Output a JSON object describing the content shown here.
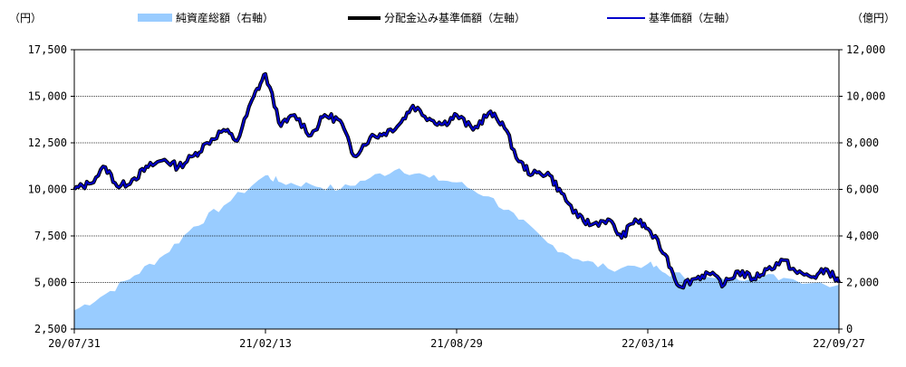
{
  "chart_data": {
    "type": "area+line",
    "y_left_unit": "（円）",
    "y_right_unit": "（億円）",
    "y_left_range": [
      2500,
      17500
    ],
    "y_left_ticks": [
      "2,500",
      "5,000",
      "7,500",
      "10,000",
      "12,500",
      "15,000",
      "17,500"
    ],
    "y_right_range": [
      0,
      12000
    ],
    "y_right_ticks": [
      "0",
      "2,000",
      "4,000",
      "6,000",
      "8,000",
      "10,000",
      "12,000"
    ],
    "x_ticks": [
      "20/07/31",
      "21/02/13",
      "21/08/29",
      "22/03/14",
      "22/09/27"
    ],
    "legend": {
      "net_assets": "純資産総額（右軸）",
      "adjusted_nav": "分配金込み基準価額（左軸）",
      "nav": "基準価額（左軸）"
    },
    "colors": {
      "net_assets": "#99ccff",
      "adjusted_nav": "#000000",
      "nav": "#0000cc"
    },
    "grid": true,
    "series": [
      {
        "name": "純資産総額（右軸）",
        "axis": "right",
        "x": [
          "2020-07-31",
          "2020-09-01",
          "2020-10-01",
          "2020-11-01",
          "2020-12-01",
          "2021-01-01",
          "2021-02-13",
          "2021-03-01",
          "2021-04-01",
          "2021-05-01",
          "2021-06-01",
          "2021-07-01",
          "2021-08-01",
          "2021-08-29",
          "2021-10-01",
          "2021-11-01",
          "2021-12-01",
          "2022-01-01",
          "2022-02-01",
          "2022-03-14",
          "2022-04-01",
          "2022-05-01",
          "2022-06-01",
          "2022-07-01",
          "2022-08-01",
          "2022-09-27"
        ],
        "values": [
          800,
          1500,
          2300,
          3200,
          4400,
          5300,
          6600,
          6300,
          6200,
          6000,
          6500,
          6900,
          6500,
          6300,
          5700,
          4700,
          3700,
          3000,
          2600,
          2800,
          2400,
          2200,
          2100,
          2300,
          2200,
          1900
        ]
      },
      {
        "name": "分配金込み基準価額（左軸）",
        "axis": "left",
        "x": [
          "2020-07-31",
          "2020-08-15",
          "2020-09-01",
          "2020-09-15",
          "2020-10-01",
          "2020-10-15",
          "2020-11-01",
          "2020-11-15",
          "2020-12-01",
          "2020-12-15",
          "2021-01-01",
          "2021-01-15",
          "2021-02-01",
          "2021-02-13",
          "2021-03-01",
          "2021-03-15",
          "2021-04-01",
          "2021-04-15",
          "2021-05-01",
          "2021-05-15",
          "2021-06-01",
          "2021-06-15",
          "2021-07-01",
          "2021-07-15",
          "2021-08-01",
          "2021-08-15",
          "2021-08-29",
          "2021-09-15",
          "2021-10-01",
          "2021-10-15",
          "2021-11-01",
          "2021-11-15",
          "2021-12-01",
          "2021-12-15",
          "2022-01-01",
          "2022-01-15",
          "2022-02-01",
          "2022-02-15",
          "2022-03-01",
          "2022-03-14",
          "2022-04-01",
          "2022-04-15",
          "2022-05-01",
          "2022-05-15",
          "2022-06-01",
          "2022-06-15",
          "2022-07-01",
          "2022-07-15",
          "2022-08-01",
          "2022-08-15",
          "2022-09-01",
          "2022-09-15",
          "2022-09-27"
        ],
        "values": [
          10000,
          10300,
          11200,
          10100,
          10600,
          11200,
          11600,
          11200,
          11800,
          12500,
          13200,
          12600,
          15000,
          16200,
          13400,
          14000,
          12900,
          14000,
          13700,
          11800,
          12800,
          13000,
          13500,
          14500,
          13800,
          13500,
          14000,
          13200,
          14100,
          13600,
          11500,
          10800,
          10900,
          9800,
          8500,
          8100,
          8400,
          7400,
          8400,
          7900,
          6500,
          4800,
          5200,
          5500,
          4900,
          5600,
          5200,
          5700,
          6200,
          5500,
          5300,
          5700,
          5000
        ]
      },
      {
        "name": "基準価額（左軸）",
        "axis": "left",
        "x": [
          "2020-07-31",
          "2020-08-15",
          "2020-09-01",
          "2020-09-15",
          "2020-10-01",
          "2020-10-15",
          "2020-11-01",
          "2020-11-15",
          "2020-12-01",
          "2020-12-15",
          "2021-01-01",
          "2021-01-15",
          "2021-02-01",
          "2021-02-13",
          "2021-03-01",
          "2021-03-15",
          "2021-04-01",
          "2021-04-15",
          "2021-05-01",
          "2021-05-15",
          "2021-06-01",
          "2021-06-15",
          "2021-07-01",
          "2021-07-15",
          "2021-08-01",
          "2021-08-15",
          "2021-08-29",
          "2021-09-15",
          "2021-10-01",
          "2021-10-15",
          "2021-11-01",
          "2021-11-15",
          "2021-12-01",
          "2021-12-15",
          "2022-01-01",
          "2022-01-15",
          "2022-02-01",
          "2022-02-15",
          "2022-03-01",
          "2022-03-14",
          "2022-04-01",
          "2022-04-15",
          "2022-05-01",
          "2022-05-15",
          "2022-06-01",
          "2022-06-15",
          "2022-07-01",
          "2022-07-15",
          "2022-08-01",
          "2022-08-15",
          "2022-09-01",
          "2022-09-15",
          "2022-09-27"
        ],
        "values": [
          10000,
          10300,
          11200,
          10100,
          10600,
          11200,
          11600,
          11200,
          11800,
          12500,
          13200,
          12600,
          15000,
          16200,
          13400,
          14000,
          12900,
          14000,
          13700,
          11800,
          12800,
          13000,
          13500,
          14500,
          13800,
          13500,
          14000,
          13200,
          14100,
          13600,
          11500,
          10800,
          10900,
          9800,
          8500,
          8100,
          8400,
          7400,
          8400,
          7900,
          6500,
          4800,
          5200,
          5500,
          4900,
          5600,
          5200,
          5700,
          6200,
          5500,
          5300,
          5700,
          5000
        ]
      }
    ]
  }
}
